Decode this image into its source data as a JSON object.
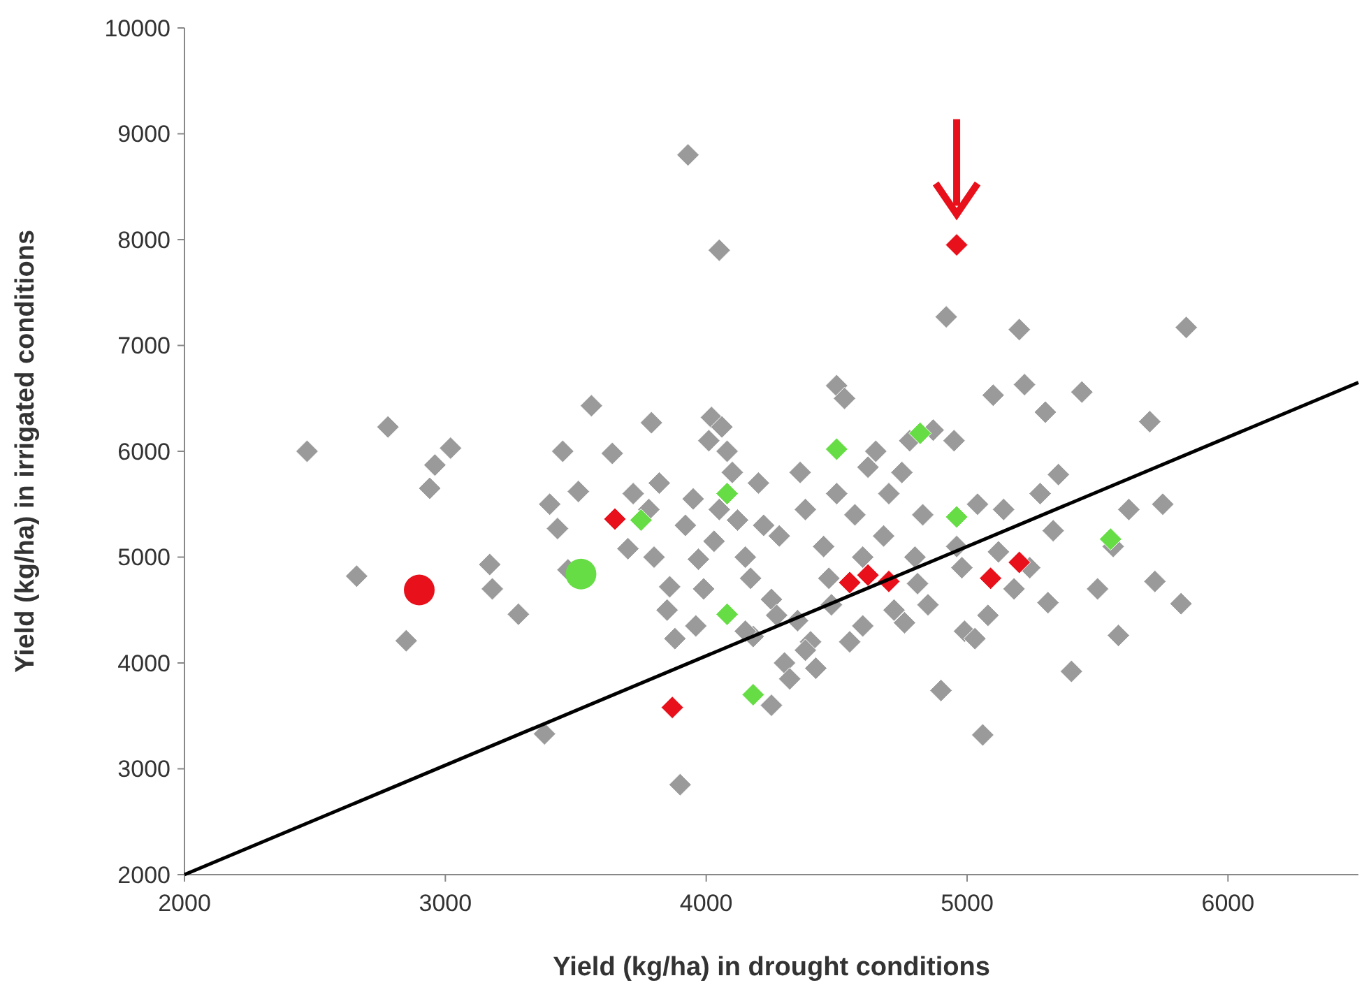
{
  "chart_data": {
    "type": "scatter",
    "xlabel": "Yield (kg/ha) in drought conditions",
    "ylabel": "Yield (kg/ha) in irrigated conditions",
    "xlim": [
      2000,
      6500
    ],
    "ylim": [
      2000,
      10000
    ],
    "xticks": [
      2000,
      3000,
      4000,
      5000,
      6000
    ],
    "yticks": [
      2000,
      3000,
      4000,
      5000,
      6000,
      7000,
      8000,
      9000,
      10000
    ],
    "grid": false,
    "series": [
      {
        "marker": "diamond",
        "color": "#9a9a9a",
        "x": [
          2470,
          2660,
          2780,
          2850,
          2940,
          2960,
          3020,
          3170,
          3180,
          3280,
          3380,
          3400,
          3430,
          3450,
          3470,
          3510,
          3560,
          3640,
          3700,
          3720,
          3790,
          3780,
          3800,
          3820,
          3850,
          3860,
          3880,
          3900,
          3930,
          3920,
          3950,
          3960,
          3970,
          3990,
          4010,
          4020,
          4050,
          4060,
          4080,
          4030,
          4050,
          4100,
          4120,
          4150,
          4170,
          4180,
          4200,
          4220,
          4250,
          4250,
          4280,
          4300,
          4320,
          4350,
          4360,
          4380,
          4400,
          4420,
          4450,
          4470,
          4480,
          4500,
          4500,
          4530,
          4550,
          4570,
          4600,
          4600,
          4620,
          4650,
          4680,
          4700,
          4720,
          4750,
          4760,
          4780,
          4800,
          4810,
          4830,
          4850,
          4870,
          4900,
          4920,
          4950,
          4960,
          4980,
          4990,
          5030,
          5040,
          5060,
          5080,
          5100,
          5120,
          5140,
          5180,
          5200,
          5220,
          5240,
          5280,
          5300,
          5310,
          5330,
          5350,
          5400,
          5440,
          5500,
          5560,
          5580,
          5620,
          5700,
          5720,
          5750,
          5820,
          5840,
          4150,
          4270,
          4380
        ],
        "values": [
          6000,
          4820,
          6230,
          4210,
          5650,
          5870,
          6030,
          4930,
          4700,
          4460,
          3330,
          5500,
          5270,
          6000,
          4880,
          5620,
          6430,
          5980,
          5080,
          5600,
          6270,
          5450,
          5000,
          5700,
          4500,
          4720,
          4230,
          2850,
          8800,
          5300,
          5550,
          4350,
          4980,
          4700,
          6100,
          6320,
          7900,
          6230,
          6000,
          5150,
          5450,
          5800,
          5350,
          5000,
          4800,
          4250,
          5700,
          5300,
          3600,
          4600,
          5200,
          4000,
          3850,
          4400,
          5800,
          5450,
          4200,
          3950,
          5100,
          4800,
          4550,
          5600,
          6620,
          6500,
          4200,
          5400,
          5000,
          4350,
          5850,
          6000,
          5200,
          5600,
          4500,
          5800,
          4380,
          6100,
          5000,
          4750,
          5400,
          4550,
          6200,
          3740,
          7270,
          6100,
          5100,
          4900,
          4300,
          4230,
          5500,
          3320,
          4450,
          6530,
          5050,
          5450,
          4700,
          7150,
          6630,
          4900,
          5600,
          6370,
          4570,
          5250,
          5780,
          3920,
          6560,
          4700,
          5100,
          4260,
          5450,
          6280,
          4770,
          5500,
          4560,
          7170,
          4300,
          4450,
          4120
        ]
      },
      {
        "marker": "diamond",
        "color": "#e8101a",
        "x": [
          3650,
          3870,
          4550,
          4620,
          4700,
          4960,
          5090,
          5200
        ],
        "values": [
          5360,
          3580,
          4760,
          4830,
          4770,
          7950,
          4800,
          4950
        ]
      },
      {
        "marker": "diamond",
        "color": "#66dd44",
        "x": [
          3750,
          4080,
          4080,
          4180,
          4500,
          4820,
          4960,
          5550
        ],
        "values": [
          5350,
          5600,
          4460,
          3700,
          6020,
          6170,
          5380,
          5170
        ]
      },
      {
        "marker": "circle",
        "color": "#e8101a",
        "x": [
          2900
        ],
        "values": [
          4690
        ]
      },
      {
        "marker": "circle",
        "color": "#66dd44",
        "x": [
          3520
        ],
        "values": [
          4840
        ]
      },
      {
        "type": "line",
        "color": "#000000",
        "x": [
          2000,
          6500
        ],
        "values": [
          2000,
          6650
        ]
      }
    ]
  }
}
